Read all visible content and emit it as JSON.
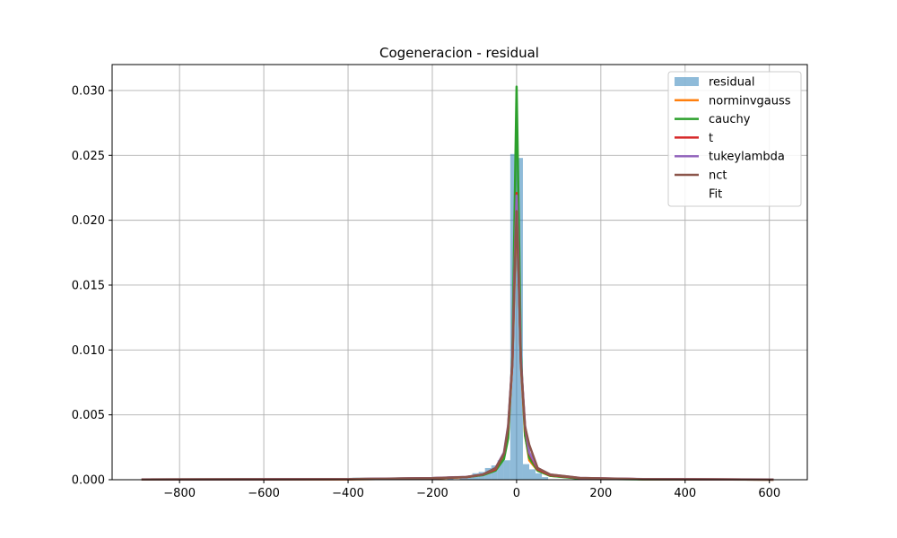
{
  "chart_data": {
    "type": "bar",
    "title": "Cogeneracion - residual",
    "xlabel": "",
    "ylabel": "",
    "xlim": [
      -960,
      690
    ],
    "ylim": [
      0,
      0.032
    ],
    "grid": true,
    "legend_position": "top-right",
    "x_ticks": [
      -800,
      -600,
      -400,
      -200,
      0,
      200,
      400,
      600
    ],
    "x_tick_labels": [
      "−800",
      "−600",
      "−400",
      "−200",
      "0",
      "200",
      "400",
      "600"
    ],
    "y_ticks": [
      0,
      0.005,
      0.01,
      0.015,
      0.02,
      0.025,
      0.03
    ],
    "y_tick_labels": [
      "0.000",
      "0.005",
      "0.010",
      "0.015",
      "0.020",
      "0.025",
      "0.030"
    ],
    "histogram": {
      "name": "residual",
      "color": "#1f77b4",
      "bin_width": 15,
      "bins": [
        {
          "x0": -390,
          "x1": -375,
          "y": 0.00015
        },
        {
          "x0": -240,
          "x1": -225,
          "y": 8e-05
        },
        {
          "x0": -210,
          "x1": -195,
          "y": 8e-05
        },
        {
          "x0": -165,
          "x1": -150,
          "y": 8e-05
        },
        {
          "x0": -135,
          "x1": -120,
          "y": 0.0002
        },
        {
          "x0": -120,
          "x1": -105,
          "y": 0.0002
        },
        {
          "x0": -105,
          "x1": -90,
          "y": 0.0005
        },
        {
          "x0": -90,
          "x1": -75,
          "y": 0.0006
        },
        {
          "x0": -75,
          "x1": -60,
          "y": 0.0009
        },
        {
          "x0": -60,
          "x1": -45,
          "y": 0.0011
        },
        {
          "x0": -45,
          "x1": -30,
          "y": 0.0015
        },
        {
          "x0": -30,
          "x1": -15,
          "y": 0.0015
        },
        {
          "x0": -15,
          "x1": 0,
          "y": 0.0251
        },
        {
          "x0": 0,
          "x1": 15,
          "y": 0.0248
        },
        {
          "x0": 15,
          "x1": 30,
          "y": 0.0012
        },
        {
          "x0": 30,
          "x1": 45,
          "y": 0.0008
        },
        {
          "x0": 45,
          "x1": 60,
          "y": 0.0005
        },
        {
          "x0": 60,
          "x1": 75,
          "y": 0.0002
        }
      ]
    },
    "series": [
      {
        "name": "norminvgauss",
        "color": "#ff7f0e",
        "points": [
          [
            -890,
            2e-05
          ],
          [
            -400,
            3e-05
          ],
          [
            -200,
            0.0001
          ],
          [
            -120,
            0.0002
          ],
          [
            -80,
            0.0004
          ],
          [
            -50,
            0.0008
          ],
          [
            -30,
            0.0018
          ],
          [
            -20,
            0.0035
          ],
          [
            -10,
            0.009
          ],
          [
            -5,
            0.015
          ],
          [
            0,
            0.0205
          ],
          [
            5,
            0.016
          ],
          [
            10,
            0.009
          ],
          [
            20,
            0.0035
          ],
          [
            30,
            0.0015
          ],
          [
            50,
            0.0007
          ],
          [
            80,
            0.0003
          ],
          [
            150,
            0.00012
          ],
          [
            300,
            4e-05
          ],
          [
            610,
            1e-05
          ]
        ]
      },
      {
        "name": "cauchy",
        "color": "#2ca02c",
        "points": [
          [
            -890,
            2e-05
          ],
          [
            -400,
            5e-05
          ],
          [
            -200,
            0.00012
          ],
          [
            -120,
            0.0002
          ],
          [
            -80,
            0.00035
          ],
          [
            -50,
            0.0007
          ],
          [
            -30,
            0.0016
          ],
          [
            -20,
            0.0032
          ],
          [
            -10,
            0.0095
          ],
          [
            -5,
            0.02
          ],
          [
            0,
            0.0303
          ],
          [
            5,
            0.0205
          ],
          [
            10,
            0.0098
          ],
          [
            20,
            0.0034
          ],
          [
            30,
            0.0017
          ],
          [
            50,
            0.0007
          ],
          [
            80,
            0.0003
          ],
          [
            150,
            9e-05
          ],
          [
            300,
            3e-05
          ],
          [
            610,
            1e-05
          ]
        ]
      },
      {
        "name": "t",
        "color": "#d62728",
        "points": [
          [
            -890,
            2e-05
          ],
          [
            -400,
            4e-05
          ],
          [
            -200,
            0.00012
          ],
          [
            -120,
            0.0002
          ],
          [
            -80,
            0.0004
          ],
          [
            -50,
            0.0008
          ],
          [
            -30,
            0.002
          ],
          [
            -20,
            0.004
          ],
          [
            -10,
            0.009
          ],
          [
            -5,
            0.016
          ],
          [
            0,
            0.0221
          ],
          [
            5,
            0.016
          ],
          [
            10,
            0.0092
          ],
          [
            20,
            0.004
          ],
          [
            30,
            0.002
          ],
          [
            50,
            0.0008
          ],
          [
            80,
            0.00035
          ],
          [
            150,
            0.00013
          ],
          [
            300,
            4e-05
          ],
          [
            610,
            1e-05
          ]
        ]
      },
      {
        "name": "tukeylambda",
        "color": "#9467bd",
        "points": [
          [
            -890,
            3e-05
          ],
          [
            -400,
            5e-05
          ],
          [
            -200,
            0.00013
          ],
          [
            -120,
            0.00022
          ],
          [
            -80,
            0.0004
          ],
          [
            -50,
            0.0009
          ],
          [
            -30,
            0.0021
          ],
          [
            -20,
            0.0042
          ],
          [
            -10,
            0.0092
          ],
          [
            -5,
            0.016
          ],
          [
            0,
            0.0219
          ],
          [
            5,
            0.016
          ],
          [
            10,
            0.0093
          ],
          [
            20,
            0.0042
          ],
          [
            30,
            0.0021
          ],
          [
            50,
            0.0009
          ],
          [
            80,
            0.0004
          ],
          [
            150,
            0.00014
          ],
          [
            300,
            5e-05
          ],
          [
            610,
            2e-05
          ]
        ]
      },
      {
        "name": "nct",
        "color": "#8c564b",
        "points": [
          [
            -890,
            2e-05
          ],
          [
            -400,
            4e-05
          ],
          [
            -200,
            0.00012
          ],
          [
            -120,
            0.00021
          ],
          [
            -80,
            0.0004
          ],
          [
            -50,
            0.0009
          ],
          [
            -30,
            0.002
          ],
          [
            -20,
            0.0041
          ],
          [
            -10,
            0.009
          ],
          [
            -5,
            0.0155
          ],
          [
            0,
            0.0207
          ],
          [
            5,
            0.0155
          ],
          [
            10,
            0.009
          ],
          [
            20,
            0.0041
          ],
          [
            30,
            0.0027
          ],
          [
            50,
            0.0009
          ],
          [
            80,
            0.0004
          ],
          [
            150,
            0.00014
          ],
          [
            300,
            4e-05
          ],
          [
            610,
            1e-05
          ]
        ]
      }
    ],
    "legend": [
      "residual",
      "norminvgauss",
      "cauchy",
      "t",
      "tukeylambda",
      "nct",
      "Fit"
    ]
  }
}
